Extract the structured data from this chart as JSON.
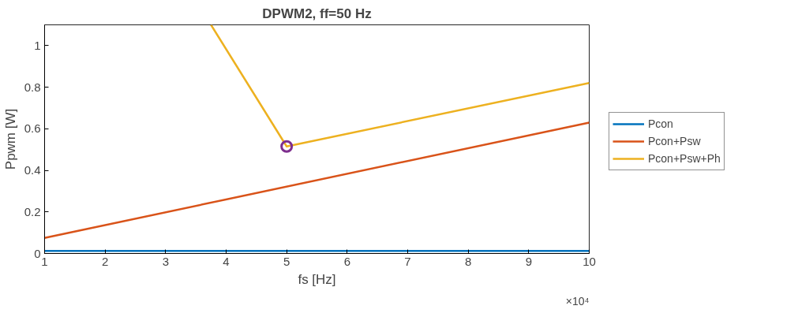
{
  "chart_data": {
    "type": "line",
    "title": "DPWM2, ff=50 Hz",
    "xlabel": "fs [Hz]",
    "ylabel": "Ppwm [W]",
    "annotations": [
      "×10⁴"
    ],
    "xlim": [
      1,
      10
    ],
    "ylim": [
      0,
      1.1
    ],
    "xticks": [
      1,
      2,
      3,
      4,
      5,
      6,
      7,
      8,
      9,
      10
    ],
    "yticks": [
      0,
      0.2,
      0.4,
      0.6,
      0.8,
      1
    ],
    "grid": false,
    "legend": "right",
    "marker": "none",
    "line_style": "solid",
    "series": [
      {
        "name": "Pcon",
        "color": "#0072bd",
        "x": [
          1,
          10
        ],
        "values": [
          0.012,
          0.012
        ]
      },
      {
        "name": "Pcon+Psw",
        "color": "#d95319",
        "x": [
          1,
          10
        ],
        "values": [
          0.075,
          0.63
        ]
      },
      {
        "name": "Pcon+Psw+Ph",
        "color": "#edb120",
        "x": [
          3.75,
          5,
          10
        ],
        "values": [
          1.1,
          0.515,
          0.82
        ]
      },
      {
        "type": "scatter",
        "marker": "circle",
        "color": "#7e2f8e",
        "x": [
          5
        ],
        "values": [
          0.515
        ]
      }
    ]
  }
}
